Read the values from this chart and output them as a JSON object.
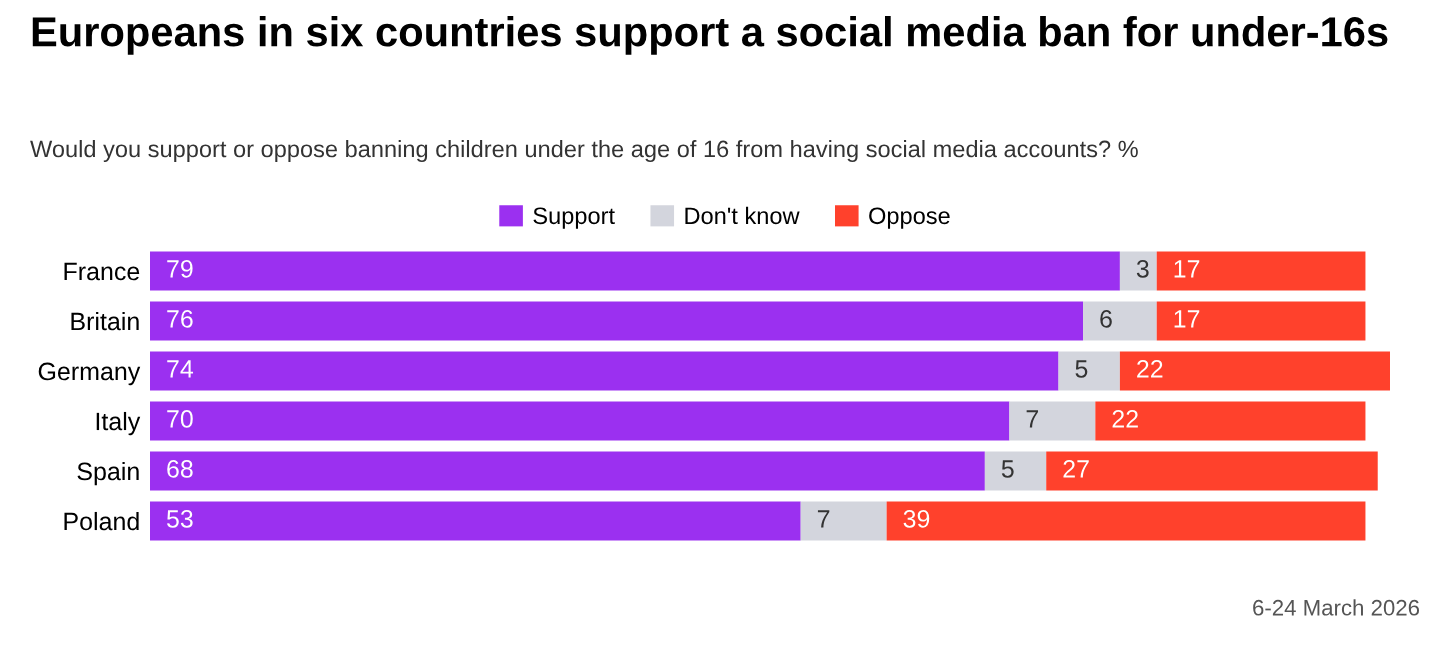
{
  "chart_data": {
    "type": "bar",
    "orientation": "horizontal",
    "stacked": true,
    "data_labels": true,
    "legend": "top",
    "grid": false,
    "title": "Europeans in six countries support a social media ban for under-16s",
    "subtitle": "Would you support or oppose banning children under the age of 16 from having social media accounts? %",
    "annotations": [
      "6-24 March 2026"
    ],
    "categories": [
      "France",
      "Britain",
      "Germany",
      "Italy",
      "Spain",
      "Poland"
    ],
    "series": [
      {
        "name": "Support",
        "color": "#9b30f0",
        "values": [
          79,
          76,
          74,
          70,
          68,
          53
        ]
      },
      {
        "name": "Don't know",
        "color": "#d3d5dd",
        "values": [
          3,
          6,
          5,
          7,
          5,
          7
        ]
      },
      {
        "name": "Oppose",
        "color": "#ff412c",
        "values": [
          17,
          17,
          22,
          22,
          27,
          39
        ]
      }
    ]
  }
}
